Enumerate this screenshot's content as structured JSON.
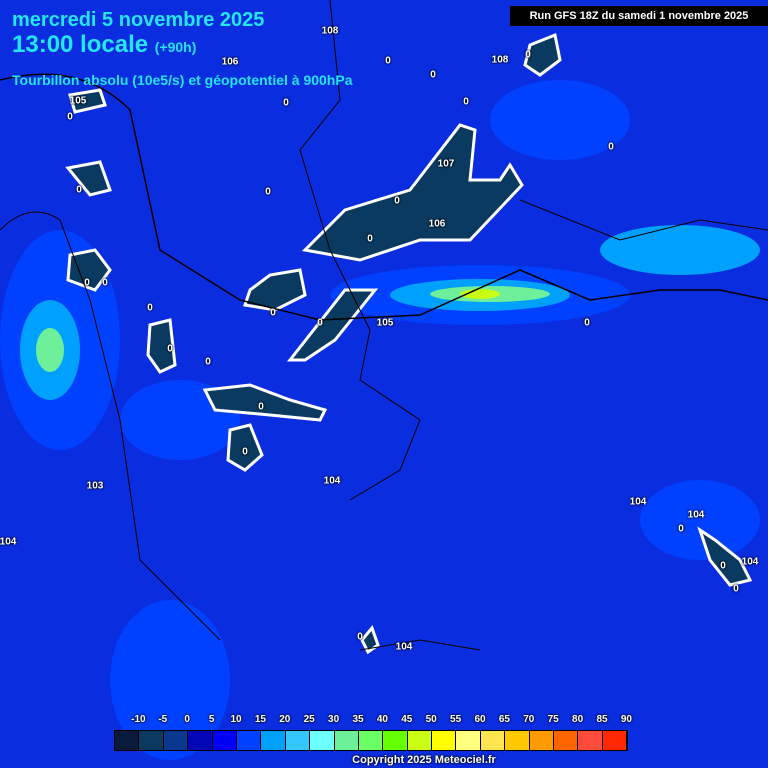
{
  "header": {
    "date": "mercredi 5 novembre 2025",
    "time": "13:00 locale",
    "lead": "(+90h)",
    "parameter": "Tourbillon absolu (10e5/s) et géopotentiel à 900hPa",
    "run": "Run GFS 18Z du samedi 1 novembre 2025"
  },
  "map_labels": [
    "106",
    "108",
    "108",
    "105",
    "0",
    "0",
    "0",
    "0",
    "0",
    "0",
    "107",
    "106",
    "0",
    "0",
    "0",
    "0",
    "0",
    "105",
    "0",
    "0",
    "0",
    "0",
    "0",
    "0",
    "0",
    "0",
    "0",
    "104",
    "103",
    "104",
    "104",
    "104",
    "0",
    "104",
    "0",
    "0",
    "0",
    "104",
    "0"
  ],
  "legend": {
    "ticks": [
      "-10",
      "-5",
      "0",
      "5",
      "10",
      "15",
      "20",
      "25",
      "30",
      "35",
      "40",
      "45",
      "50",
      "55",
      "60",
      "65",
      "70",
      "75",
      "80",
      "85",
      "90"
    ],
    "colors": [
      "#0a1a3c",
      "#0a3a60",
      "#0a3890",
      "#0006b8",
      "#0000f5",
      "#0040ff",
      "#00a0ff",
      "#32c8ff",
      "#6effff",
      "#6ef09a",
      "#6aff64",
      "#64ff00",
      "#c8ff14",
      "#ffff00",
      "#ffff80",
      "#ffe650",
      "#ffc800",
      "#ff9b00",
      "#ff6400",
      "#ff4b3c",
      "#ff2800"
    ]
  },
  "copyright": "Copyright 2025 Meteociel.fr"
}
